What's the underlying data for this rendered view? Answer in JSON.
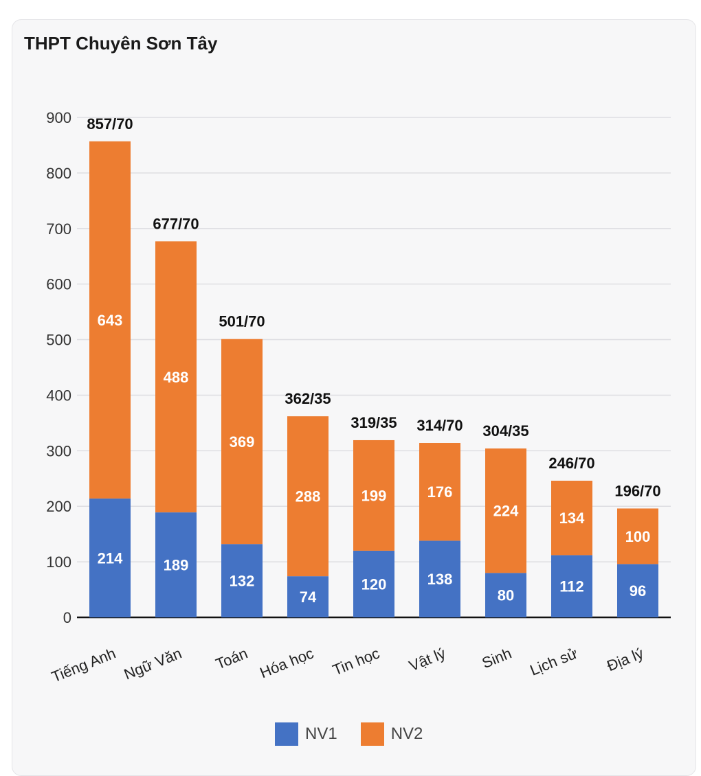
{
  "chart_data": {
    "type": "bar",
    "stacked": true,
    "title": "THPT Chuyên Sơn Tây",
    "categories": [
      "Tiếng Anh",
      "Ngữ Văn",
      "Toán",
      "Hóa học",
      "Tin học",
      "Vật lý",
      "Sinh",
      "Lịch sử",
      "Địa lý"
    ],
    "series": [
      {
        "name": "NV1",
        "color": "#4472c4",
        "values": [
          214,
          189,
          132,
          74,
          120,
          138,
          80,
          112,
          96
        ]
      },
      {
        "name": "NV2",
        "color": "#ed7d31",
        "values": [
          643,
          488,
          369,
          288,
          199,
          176,
          224,
          134,
          100
        ]
      }
    ],
    "total_labels": [
      "857/70",
      "677/70",
      "501/70",
      "362/35",
      "319/35",
      "314/70",
      "304/35",
      "246/70",
      "196/70"
    ],
    "ylim": [
      0,
      900
    ],
    "yticks": [
      0,
      100,
      200,
      300,
      400,
      500,
      600,
      700,
      800,
      900
    ],
    "grid": true,
    "legend": "bottom",
    "xlabel": "",
    "ylabel": ""
  }
}
